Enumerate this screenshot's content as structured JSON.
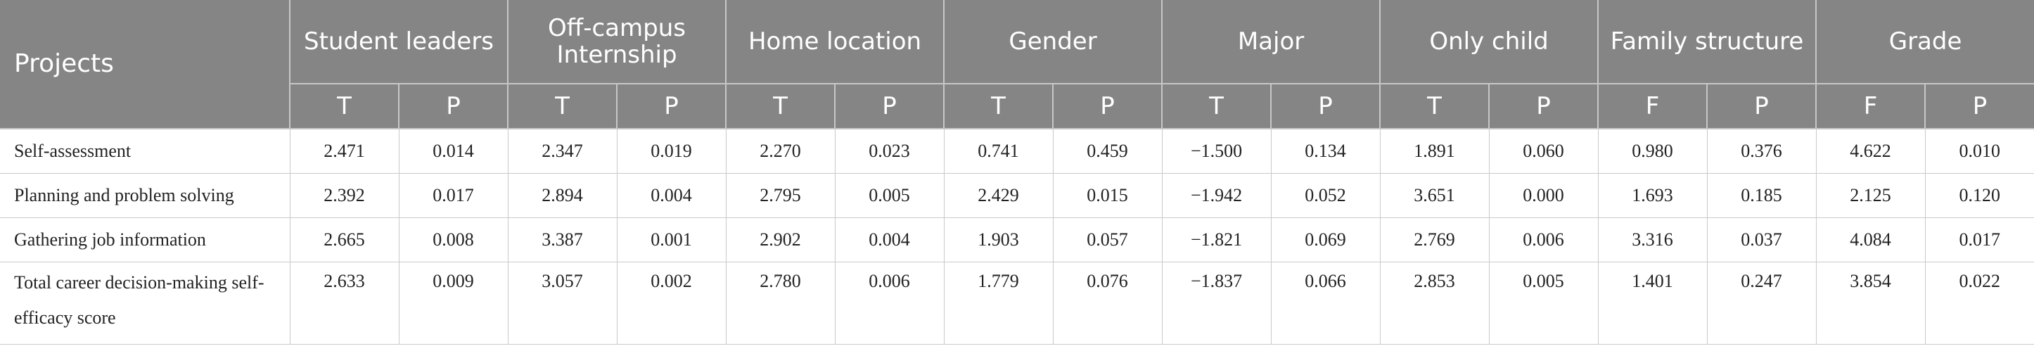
{
  "header": {
    "projects": "Projects",
    "groups": [
      {
        "label": "Student leaders",
        "sub": [
          "T",
          "P"
        ]
      },
      {
        "label": "Off-campus Internship",
        "sub": [
          "T",
          "P"
        ]
      },
      {
        "label": "Home location",
        "sub": [
          "T",
          "P"
        ]
      },
      {
        "label": "Gender",
        "sub": [
          "T",
          "P"
        ]
      },
      {
        "label": "Major",
        "sub": [
          "T",
          "P"
        ]
      },
      {
        "label": "Only child",
        "sub": [
          "T",
          "P"
        ]
      },
      {
        "label": "Family structure",
        "sub": [
          "F",
          "P"
        ]
      },
      {
        "label": "Grade",
        "sub": [
          "F",
          "P"
        ]
      }
    ]
  },
  "rows": [
    {
      "label": "Self-assessment",
      "values": [
        "2.471",
        "0.014",
        "2.347",
        "0.019",
        "2.270",
        "0.023",
        "0.741",
        "0.459",
        "−1.500",
        "0.134",
        "1.891",
        "0.060",
        "0.980",
        "0.376",
        "4.622",
        "0.010"
      ]
    },
    {
      "label": "Planning and problem solving",
      "values": [
        "2.392",
        "0.017",
        "2.894",
        "0.004",
        "2.795",
        "0.005",
        "2.429",
        "0.015",
        "−1.942",
        "0.052",
        "3.651",
        "0.000",
        "1.693",
        "0.185",
        "2.125",
        "0.120"
      ]
    },
    {
      "label": "Gathering job information",
      "values": [
        "2.665",
        "0.008",
        "3.387",
        "0.001",
        "2.902",
        "0.004",
        "1.903",
        "0.057",
        "−1.821",
        "0.069",
        "2.769",
        "0.006",
        "3.316",
        "0.037",
        "4.084",
        "0.017"
      ]
    },
    {
      "label": "Total career decision-making self-efficacy score",
      "values": [
        "2.633",
        "0.009",
        "3.057",
        "0.002",
        "2.780",
        "0.006",
        "1.779",
        "0.076",
        "−1.837",
        "0.066",
        "2.853",
        "0.005",
        "1.401",
        "0.247",
        "3.854",
        "0.022"
      ]
    }
  ]
}
